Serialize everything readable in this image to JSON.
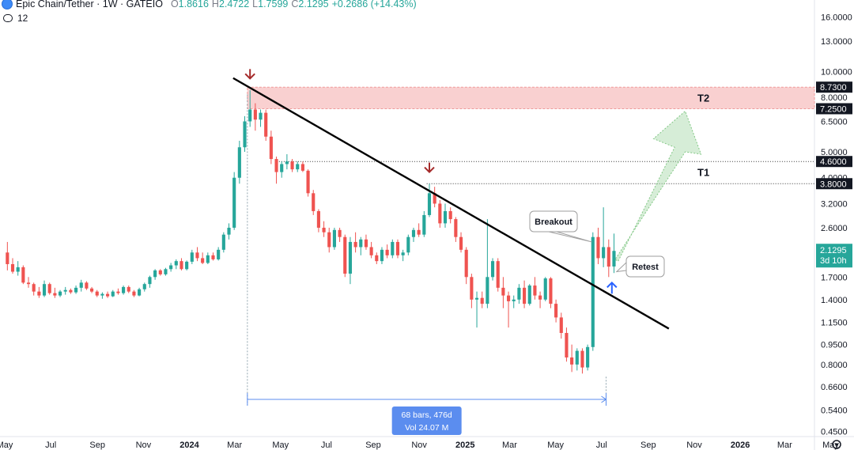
{
  "header": {
    "title": "Epic Chain/Tether · 1W · GATEIO",
    "o_label": "O",
    "o_value": "1.8616",
    "h_label": "H",
    "h_value": "2.4722",
    "l_label": "L",
    "l_value": "1.7599",
    "c_label": "C",
    "c_value": "2.1295",
    "change": "+0.2686 (+14.43%)"
  },
  "subheader": {
    "indicator_count": "12"
  },
  "price_axis": {
    "ticks": [
      "16.0000",
      "13.0000",
      "10.0000",
      "8.0000",
      "6.5000",
      "5.0000",
      "4.0000",
      "3.2000",
      "2.6000",
      "2.1000",
      "1.7000",
      "1.4000",
      "1.1500",
      "0.9500",
      "0.8000",
      "0.6600",
      "0.5400",
      "0.4500"
    ],
    "tag_8730": "8.7300",
    "tag_7250": "7.2500",
    "tag_4600": "4.6000",
    "tag_3800": "3.8000",
    "last_price": "2.1295",
    "countdown": "3d 10h"
  },
  "time_axis": {
    "labels": [
      "May",
      "Jul",
      "Sep",
      "Nov",
      "2024",
      "Mar",
      "May",
      "Jul",
      "Sep",
      "Nov",
      "2025",
      "Mar",
      "May",
      "Jul",
      "Sep",
      "Nov",
      "2026",
      "Mar",
      "May"
    ],
    "bold": [
      "2024",
      "2025",
      "2026"
    ]
  },
  "annotations": {
    "breakout": "Breakout",
    "retest": "Retest",
    "t1": "T1",
    "t2": "T2",
    "range_bars": "68 bars, 476d",
    "range_vol": "Vol 24.07 M"
  },
  "colors": {
    "up": "#26a69a",
    "down": "#ef5350",
    "zone": "#f7c6c6",
    "trendline": "#000000",
    "arrow_green": "#a5d6a7",
    "marker_red": "#a52a2a",
    "marker_blue": "#2962ff"
  },
  "settings_icon": "gear-icon",
  "chart_data": {
    "type": "candlestick",
    "timeframe": "1W",
    "symbol": "Epic Chain/Tether",
    "exchange": "GATEIO",
    "ylog": true,
    "ylim": [
      0.43,
      18.5
    ],
    "xlim": [
      "2023-05-01",
      "2026-06-01"
    ],
    "candles": [
      [
        "2023-05-01",
        2.1,
        2.3,
        1.8,
        1.9
      ],
      [
        "2023-05-08",
        1.9,
        2.0,
        1.75,
        1.78
      ],
      [
        "2023-05-15",
        1.78,
        1.95,
        1.72,
        1.85
      ],
      [
        "2023-05-22",
        1.85,
        1.88,
        1.6,
        1.62
      ],
      [
        "2023-05-29",
        1.62,
        1.7,
        1.55,
        1.6
      ],
      [
        "2023-06-05",
        1.6,
        1.62,
        1.45,
        1.5
      ],
      [
        "2023-06-12",
        1.5,
        1.56,
        1.42,
        1.45
      ],
      [
        "2023-06-19",
        1.45,
        1.65,
        1.43,
        1.6
      ],
      [
        "2023-06-26",
        1.6,
        1.62,
        1.46,
        1.48
      ],
      [
        "2023-07-03",
        1.48,
        1.55,
        1.42,
        1.45
      ],
      [
        "2023-07-10",
        1.45,
        1.52,
        1.43,
        1.5
      ],
      [
        "2023-07-17",
        1.5,
        1.56,
        1.46,
        1.52
      ],
      [
        "2023-07-24",
        1.52,
        1.54,
        1.47,
        1.49
      ],
      [
        "2023-07-31",
        1.49,
        1.58,
        1.47,
        1.55
      ],
      [
        "2023-08-07",
        1.55,
        1.66,
        1.5,
        1.62
      ],
      [
        "2023-08-14",
        1.62,
        1.64,
        1.52,
        1.54
      ],
      [
        "2023-08-21",
        1.54,
        1.56,
        1.48,
        1.5
      ],
      [
        "2023-08-28",
        1.5,
        1.52,
        1.43,
        1.45
      ],
      [
        "2023-09-04",
        1.45,
        1.49,
        1.41,
        1.47
      ],
      [
        "2023-09-11",
        1.47,
        1.5,
        1.42,
        1.44
      ],
      [
        "2023-09-18",
        1.44,
        1.52,
        1.43,
        1.5
      ],
      [
        "2023-09-25",
        1.5,
        1.54,
        1.46,
        1.48
      ],
      [
        "2023-10-02",
        1.48,
        1.58,
        1.46,
        1.56
      ],
      [
        "2023-10-09",
        1.56,
        1.58,
        1.48,
        1.5
      ],
      [
        "2023-10-16",
        1.5,
        1.52,
        1.43,
        1.45
      ],
      [
        "2023-10-23",
        1.45,
        1.55,
        1.44,
        1.53
      ],
      [
        "2023-10-30",
        1.53,
        1.62,
        1.5,
        1.6
      ],
      [
        "2023-11-06",
        1.6,
        1.72,
        1.55,
        1.7
      ],
      [
        "2023-11-13",
        1.7,
        1.82,
        1.66,
        1.8
      ],
      [
        "2023-11-20",
        1.8,
        1.82,
        1.72,
        1.74
      ],
      [
        "2023-11-27",
        1.74,
        1.84,
        1.72,
        1.82
      ],
      [
        "2023-12-04",
        1.82,
        1.92,
        1.78,
        1.88
      ],
      [
        "2023-12-11",
        1.88,
        1.98,
        1.82,
        1.95
      ],
      [
        "2023-12-18",
        1.95,
        2.0,
        1.8,
        1.82
      ],
      [
        "2023-12-25",
        1.82,
        1.96,
        1.8,
        1.94
      ],
      [
        "2024-01-01",
        1.94,
        2.15,
        1.9,
        2.1
      ],
      [
        "2024-01-08",
        2.1,
        2.2,
        1.95,
        2.0
      ],
      [
        "2024-01-15",
        2.0,
        2.1,
        1.9,
        1.92
      ],
      [
        "2024-01-22",
        1.92,
        2.1,
        1.9,
        2.05
      ],
      [
        "2024-01-29",
        2.05,
        2.1,
        1.96,
        1.98
      ],
      [
        "2024-02-05",
        1.98,
        2.2,
        1.96,
        2.15
      ],
      [
        "2024-02-12",
        2.15,
        2.5,
        2.1,
        2.45
      ],
      [
        "2024-02-19",
        2.45,
        2.7,
        2.35,
        2.6
      ],
      [
        "2024-02-26",
        2.6,
        4.2,
        2.55,
        4.0
      ],
      [
        "2024-03-04",
        4.0,
        5.5,
        3.8,
        5.2
      ],
      [
        "2024-03-11",
        5.2,
        6.8,
        5.0,
        6.5
      ],
      [
        "2024-03-18",
        6.5,
        8.5,
        6.2,
        7.2
      ],
      [
        "2024-03-25",
        7.2,
        7.6,
        6.0,
        6.6
      ],
      [
        "2024-04-01",
        6.6,
        7.2,
        6.2,
        7.0
      ],
      [
        "2024-04-08",
        7.0,
        7.2,
        5.5,
        5.7
      ],
      [
        "2024-04-15",
        5.7,
        6.0,
        4.5,
        4.7
      ],
      [
        "2024-04-22",
        4.7,
        4.8,
        3.8,
        4.2
      ],
      [
        "2024-04-29",
        4.2,
        4.6,
        4.0,
        4.5
      ],
      [
        "2024-05-06",
        4.5,
        4.9,
        4.3,
        4.6
      ],
      [
        "2024-05-13",
        4.6,
        4.7,
        4.2,
        4.3
      ],
      [
        "2024-05-20",
        4.3,
        4.6,
        4.2,
        4.5
      ],
      [
        "2024-05-27",
        4.5,
        4.6,
        4.2,
        4.25
      ],
      [
        "2024-06-03",
        4.25,
        4.3,
        3.4,
        3.5
      ],
      [
        "2024-06-10",
        3.5,
        3.6,
        2.9,
        3.0
      ],
      [
        "2024-06-17",
        3.0,
        3.05,
        2.5,
        2.6
      ],
      [
        "2024-06-24",
        2.6,
        2.75,
        2.4,
        2.5
      ],
      [
        "2024-07-01",
        2.5,
        2.6,
        2.1,
        2.2
      ],
      [
        "2024-07-08",
        2.2,
        2.6,
        2.15,
        2.55
      ],
      [
        "2024-07-15",
        2.55,
        2.6,
        2.3,
        2.4
      ],
      [
        "2024-07-22",
        2.4,
        2.45,
        1.7,
        1.75
      ],
      [
        "2024-07-29",
        1.75,
        2.4,
        1.6,
        2.3
      ],
      [
        "2024-08-05",
        2.3,
        2.5,
        2.1,
        2.2
      ],
      [
        "2024-08-12",
        2.2,
        2.4,
        2.05,
        2.35
      ],
      [
        "2024-08-19",
        2.35,
        2.45,
        2.15,
        2.2
      ],
      [
        "2024-08-26",
        2.2,
        2.3,
        2.0,
        2.05
      ],
      [
        "2024-09-02",
        2.05,
        2.1,
        1.9,
        1.95
      ],
      [
        "2024-09-09",
        1.95,
        2.2,
        1.9,
        2.15
      ],
      [
        "2024-09-16",
        2.15,
        2.25,
        2.0,
        2.05
      ],
      [
        "2024-09-23",
        2.05,
        2.35,
        2.0,
        2.3
      ],
      [
        "2024-09-30",
        2.3,
        2.35,
        2.0,
        2.05
      ],
      [
        "2024-10-07",
        2.05,
        2.15,
        1.95,
        2.1
      ],
      [
        "2024-10-14",
        2.1,
        2.45,
        2.05,
        2.4
      ],
      [
        "2024-10-21",
        2.4,
        2.6,
        2.3,
        2.55
      ],
      [
        "2024-10-28",
        2.55,
        2.7,
        2.4,
        2.45
      ],
      [
        "2024-11-04",
        2.45,
        3.0,
        2.4,
        2.9
      ],
      [
        "2024-11-11",
        2.9,
        3.8,
        2.85,
        3.5
      ],
      [
        "2024-11-18",
        3.5,
        3.7,
        3.1,
        3.2
      ],
      [
        "2024-11-25",
        3.2,
        3.3,
        2.6,
        2.7
      ],
      [
        "2024-12-02",
        2.7,
        3.2,
        2.6,
        3.0
      ],
      [
        "2024-12-09",
        3.0,
        3.1,
        2.7,
        2.8
      ],
      [
        "2024-12-16",
        2.8,
        2.85,
        2.3,
        2.4
      ],
      [
        "2024-12-23",
        2.4,
        2.5,
        2.1,
        2.15
      ],
      [
        "2024-12-30",
        2.15,
        2.2,
        1.6,
        1.7
      ],
      [
        "2025-01-06",
        1.7,
        1.75,
        1.3,
        1.4
      ],
      [
        "2025-01-13",
        1.4,
        1.5,
        1.1,
        1.42
      ],
      [
        "2025-01-20",
        1.42,
        1.5,
        1.3,
        1.35
      ],
      [
        "2025-01-27",
        1.35,
        2.8,
        1.3,
        1.7
      ],
      [
        "2025-02-03",
        1.7,
        2.0,
        1.65,
        1.95
      ],
      [
        "2025-02-10",
        1.95,
        2.0,
        1.5,
        1.55
      ],
      [
        "2025-02-17",
        1.55,
        1.7,
        1.3,
        1.45
      ],
      [
        "2025-02-24",
        1.45,
        1.5,
        1.1,
        1.38
      ],
      [
        "2025-03-03",
        1.38,
        1.45,
        1.3,
        1.4
      ],
      [
        "2025-03-10",
        1.4,
        1.6,
        1.35,
        1.55
      ],
      [
        "2025-03-17",
        1.55,
        1.65,
        1.3,
        1.35
      ],
      [
        "2025-03-24",
        1.35,
        1.6,
        1.33,
        1.58
      ],
      [
        "2025-03-31",
        1.58,
        1.7,
        1.4,
        1.45
      ],
      [
        "2025-04-07",
        1.45,
        1.5,
        1.3,
        1.4
      ],
      [
        "2025-04-14",
        1.4,
        1.7,
        1.38,
        1.68
      ],
      [
        "2025-04-21",
        1.68,
        1.7,
        1.3,
        1.35
      ],
      [
        "2025-04-28",
        1.35,
        1.4,
        1.15,
        1.2
      ],
      [
        "2025-05-05",
        1.2,
        1.25,
        1.0,
        1.05
      ],
      [
        "2025-05-12",
        1.05,
        1.1,
        0.82,
        0.85
      ],
      [
        "2025-05-19",
        0.85,
        0.95,
        0.75,
        0.8
      ],
      [
        "2025-05-26",
        0.8,
        0.92,
        0.76,
        0.9
      ],
      [
        "2025-06-02",
        0.9,
        0.92,
        0.74,
        0.78
      ],
      [
        "2025-06-09",
        0.78,
        0.95,
        0.76,
        0.93
      ],
      [
        "2025-06-16",
        0.93,
        2.5,
        0.9,
        2.4
      ],
      [
        "2025-06-23",
        2.4,
        2.6,
        1.9,
        2.0
      ],
      [
        "2025-06-30",
        2.0,
        3.1,
        1.85,
        2.2
      ],
      [
        "2025-07-07",
        2.2,
        2.35,
        1.7,
        1.86
      ],
      [
        "2025-07-14",
        1.8616,
        2.4722,
        1.7599,
        2.1295
      ]
    ],
    "trendline": [
      [
        "2024-03-18",
        9.0
      ],
      [
        "2025-09-22",
        1.12
      ]
    ],
    "zones": [
      {
        "from": 7.25,
        "to": 8.73,
        "label": "T2"
      }
    ],
    "levels": [
      4.6,
      3.8
    ],
    "targets": {
      "T1": 3.8,
      "T2": 7.25
    },
    "range_measure": {
      "from": "2024-03-18",
      "to": "2025-07-07",
      "bars": 68,
      "days": 476,
      "volume": "24.07 M"
    }
  }
}
